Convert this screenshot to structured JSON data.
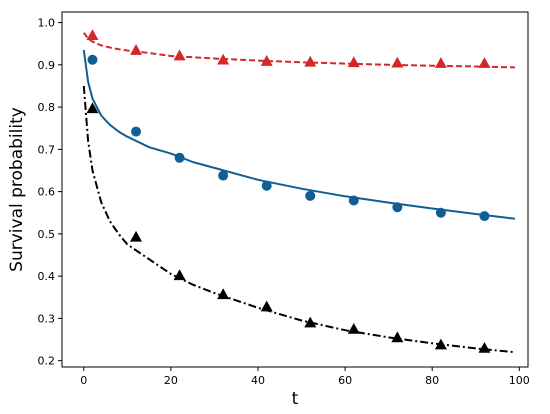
{
  "chart_data": {
    "type": "line",
    "xlabel": "t",
    "ylabel": "Survival probability",
    "xlim": [
      -5,
      102
    ],
    "ylim": [
      0.185,
      1.025
    ],
    "xticks": [
      0,
      20,
      40,
      60,
      80,
      100
    ],
    "yticks": [
      0.2,
      0.3,
      0.4,
      0.5,
      0.6,
      0.7,
      0.8,
      0.9,
      1.0
    ],
    "xtick_labels": [
      "0",
      "20",
      "40",
      "60",
      "80",
      "100"
    ],
    "ytick_labels": [
      "0.2",
      "0.3",
      "0.4",
      "0.5",
      "0.6",
      "0.7",
      "0.8",
      "0.9",
      "1.0"
    ],
    "grid": false,
    "legend": "none",
    "series": [
      {
        "color": "#d62728",
        "marker": "triangle",
        "linestyle": "dashed",
        "points_x": [
          2,
          12,
          22,
          32,
          42,
          52,
          62,
          72,
          82,
          92
        ],
        "points_y": [
          0.97,
          0.935,
          0.922,
          0.912,
          0.909,
          0.907,
          0.906,
          0.905,
          0.904,
          0.904
        ],
        "curve_x": [
          0,
          1,
          2,
          4,
          6,
          8,
          10,
          15,
          20,
          25,
          30,
          40,
          50,
          60,
          70,
          80,
          90,
          99
        ],
        "curve_y": [
          0.976,
          0.962,
          0.955,
          0.946,
          0.941,
          0.937,
          0.934,
          0.928,
          0.921,
          0.918,
          0.915,
          0.91,
          0.906,
          0.903,
          0.9,
          0.898,
          0.896,
          0.894
        ]
      },
      {
        "color": "#0f5f96",
        "marker": "circle",
        "linestyle": "solid",
        "points_x": [
          2,
          12,
          22,
          32,
          42,
          52,
          62,
          72,
          82,
          92
        ],
        "points_y": [
          0.912,
          0.742,
          0.68,
          0.638,
          0.614,
          0.59,
          0.579,
          0.563,
          0.55,
          0.542
        ],
        "curve_x": [
          0,
          1,
          2,
          4,
          6,
          8,
          10,
          15,
          20,
          25,
          30,
          40,
          50,
          60,
          70,
          80,
          90,
          99
        ],
        "curve_y": [
          0.935,
          0.86,
          0.82,
          0.78,
          0.758,
          0.742,
          0.73,
          0.705,
          0.69,
          0.67,
          0.656,
          0.628,
          0.607,
          0.589,
          0.574,
          0.56,
          0.547,
          0.536
        ]
      },
      {
        "color": "#000000",
        "marker": "triangle",
        "linestyle": "dashdot",
        "points_x": [
          2,
          12,
          22,
          32,
          42,
          52,
          62,
          72,
          82,
          92
        ],
        "points_y": [
          0.797,
          0.493,
          0.402,
          0.357,
          0.328,
          0.29,
          0.275,
          0.255,
          0.238,
          0.23
        ],
        "curve_x": [
          0,
          1,
          2,
          4,
          6,
          8,
          10,
          15,
          20,
          25,
          30,
          40,
          50,
          60,
          70,
          80,
          90,
          99
        ],
        "curve_y": [
          0.85,
          0.72,
          0.65,
          0.575,
          0.53,
          0.5,
          0.475,
          0.44,
          0.405,
          0.38,
          0.36,
          0.325,
          0.295,
          0.272,
          0.255,
          0.241,
          0.229,
          0.22
        ]
      }
    ]
  }
}
